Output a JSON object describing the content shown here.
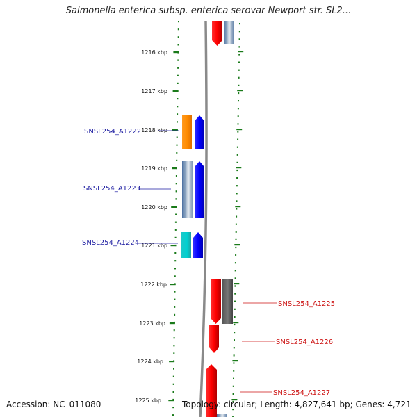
{
  "title": "Salmonella enterica subsp. enterica serovar Newport str. SL2...",
  "footer": {
    "accession": "Accession: NC_011080",
    "topology": "Topology: circular; Length: 4,827,641 bp; Genes: 4,721"
  },
  "scale_labels": [
    "1216 kbp",
    "1217 kbp",
    "1218 kbp",
    "1219 kbp",
    "1220 kbp",
    "1221 kbp",
    "1222 kbp",
    "1223 kbp",
    "1224 kbp",
    "1225 kbp"
  ],
  "gene_labels_left": [
    "SNSL254_A1222",
    "SNSL254_A1223",
    "SNSL254_A1224"
  ],
  "gene_labels_right": [
    "SNSL254_A1225",
    "SNSL254_A1226",
    "SNSL254_A1227"
  ],
  "colors": {
    "backbone": "#808080",
    "ticks": "#1a7a1a",
    "forward_strand": "#0000ee",
    "reverse_strand": "#ee0000",
    "label_left": "#1a1aa0",
    "label_right": "#cc1111"
  }
}
